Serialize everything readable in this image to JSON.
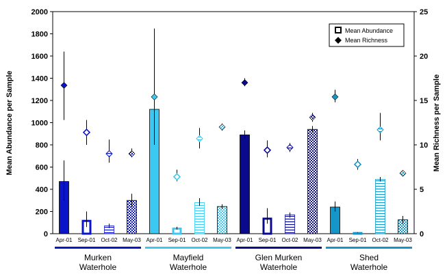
{
  "chart_data": {
    "type": "bar",
    "y_left_label": "Mean Abundance per Sample",
    "y_right_label": "Mean Richness per Sample",
    "y_left_range": [
      0,
      2000
    ],
    "y_left_ticks": [
      "0",
      "200",
      "400",
      "600",
      "800",
      "1000",
      "1200",
      "1400",
      "1600",
      "1800",
      "2000"
    ],
    "y_right_range": [
      0,
      25
    ],
    "y_right_ticks": [
      "0",
      "5",
      "10",
      "15",
      "20",
      "25"
    ],
    "legend": {
      "position": "top-right",
      "abundance": "Mean Abundance",
      "richness": "Mean Richness"
    },
    "series_styles": [
      "solid",
      "open",
      "horizontal-lines",
      "checker"
    ],
    "groups": [
      {
        "name_line1": "Murken",
        "name_line2": "Waterhole",
        "color": "#0a14c8",
        "bars": [
          {
            "x": "Apr-01",
            "abundance": 470,
            "ab_err": [
              300,
              660
            ],
            "richness": 16.7,
            "ri_err": [
              12.8,
              20.5
            ]
          },
          {
            "x": "Sep-01",
            "abundance": 120,
            "ab_err": [
              60,
              200
            ],
            "richness": 11.4,
            "ri_err": [
              10.0,
              12.8
            ]
          },
          {
            "x": "Oct-02",
            "abundance": 70,
            "ab_err": [
              50,
              90
            ],
            "richness": 9.0,
            "ri_err": [
              8.0,
              10.6
            ]
          },
          {
            "x": "May-03",
            "abundance": 300,
            "ab_err": [
              240,
              360
            ],
            "richness": 9.0,
            "ri_err": [
              8.6,
              9.6
            ]
          }
        ]
      },
      {
        "name_line1": "Mayfield",
        "name_line2": "Waterhole",
        "color": "#3cc8f0",
        "bars": [
          {
            "x": "Apr-01",
            "abundance": 1120,
            "ab_err": [
              800,
              1420
            ],
            "richness": 15.4,
            "ri_err": [
              10.5,
              23.1
            ]
          },
          {
            "x": "Sep-01",
            "abundance": 50,
            "ab_err": [
              38,
              62
            ],
            "richness": 6.4,
            "ri_err": [
              5.9,
              7.2
            ]
          },
          {
            "x": "Oct-02",
            "abundance": 280,
            "ab_err": [
              250,
              320
            ],
            "richness": 10.7,
            "ri_err": [
              9.6,
              11.9
            ]
          },
          {
            "x": "May-03",
            "abundance": 245,
            "ab_err": [
              225,
              265
            ],
            "richness": 12.0,
            "ri_err": [
              11.6,
              12.4
            ]
          }
        ]
      },
      {
        "name_line1": "Glen Murken",
        "name_line2": "Waterhole",
        "color": "#0a0a8c",
        "bars": [
          {
            "x": "Apr-01",
            "abundance": 890,
            "ab_err": [
              860,
              930
            ],
            "richness": 17.0,
            "ri_err": [
              16.6,
              17.5
            ]
          },
          {
            "x": "Sep-01",
            "abundance": 140,
            "ab_err": [
              90,
              230
            ],
            "richness": 9.4,
            "ri_err": [
              8.6,
              10.5
            ]
          },
          {
            "x": "Oct-02",
            "abundance": 170,
            "ab_err": [
              145,
              190
            ],
            "richness": 9.7,
            "ri_err": [
              9.2,
              10.2
            ]
          },
          {
            "x": "May-03",
            "abundance": 940,
            "ab_err": [
              910,
              970
            ],
            "richness": 13.1,
            "ri_err": [
              12.6,
              13.6
            ]
          }
        ]
      },
      {
        "name_line1": "Shed",
        "name_line2": "Waterhole",
        "color": "#1496c8",
        "bars": [
          {
            "x": "Apr-01",
            "abundance": 240,
            "ab_err": [
              200,
              290
            ],
            "richness": 15.4,
            "ri_err": [
              14.8,
              16.2
            ]
          },
          {
            "x": "Sep-01",
            "abundance": 10,
            "ab_err": [
              8,
              12
            ],
            "richness": 7.8,
            "ri_err": [
              7.2,
              8.4
            ]
          },
          {
            "x": "Oct-02",
            "abundance": 490,
            "ab_err": [
              470,
              510
            ],
            "richness": 11.7,
            "ri_err": [
              10.5,
              13.6
            ]
          },
          {
            "x": "May-03",
            "abundance": 125,
            "ab_err": [
              90,
              160
            ],
            "richness": 6.8,
            "ri_err": [
              6.6,
              7.1
            ]
          }
        ]
      }
    ]
  }
}
